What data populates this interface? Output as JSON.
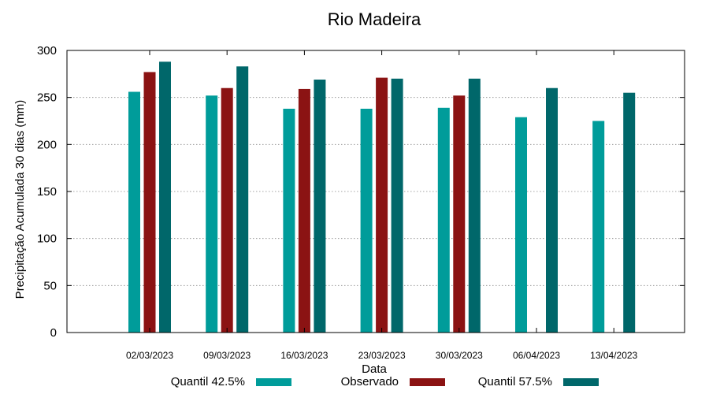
{
  "chart_data": {
    "type": "bar",
    "title": "Rio Madeira",
    "xlabel": "Data",
    "ylabel": "Precipitação Acumulada 30 dias (mm)",
    "ylim": [
      0,
      300
    ],
    "yticks": [
      0,
      50,
      100,
      150,
      200,
      250,
      300
    ],
    "grid": true,
    "legend_position": "bottom",
    "categories": [
      "02/03/2023",
      "09/03/2023",
      "16/03/2023",
      "23/03/2023",
      "30/03/2023",
      "06/04/2023",
      "13/04/2023"
    ],
    "series": [
      {
        "name": "Quantil 42.5%",
        "color": "#009c9a",
        "values": [
          256,
          252,
          238,
          238,
          239,
          229,
          225
        ]
      },
      {
        "name": "Observado",
        "color": "#8b1313",
        "values": [
          277,
          260,
          259,
          271,
          252,
          null,
          null
        ]
      },
      {
        "name": "Quantil 57.5%",
        "color": "#00676a",
        "values": [
          288,
          283,
          269,
          270,
          270,
          260,
          255
        ]
      }
    ]
  }
}
